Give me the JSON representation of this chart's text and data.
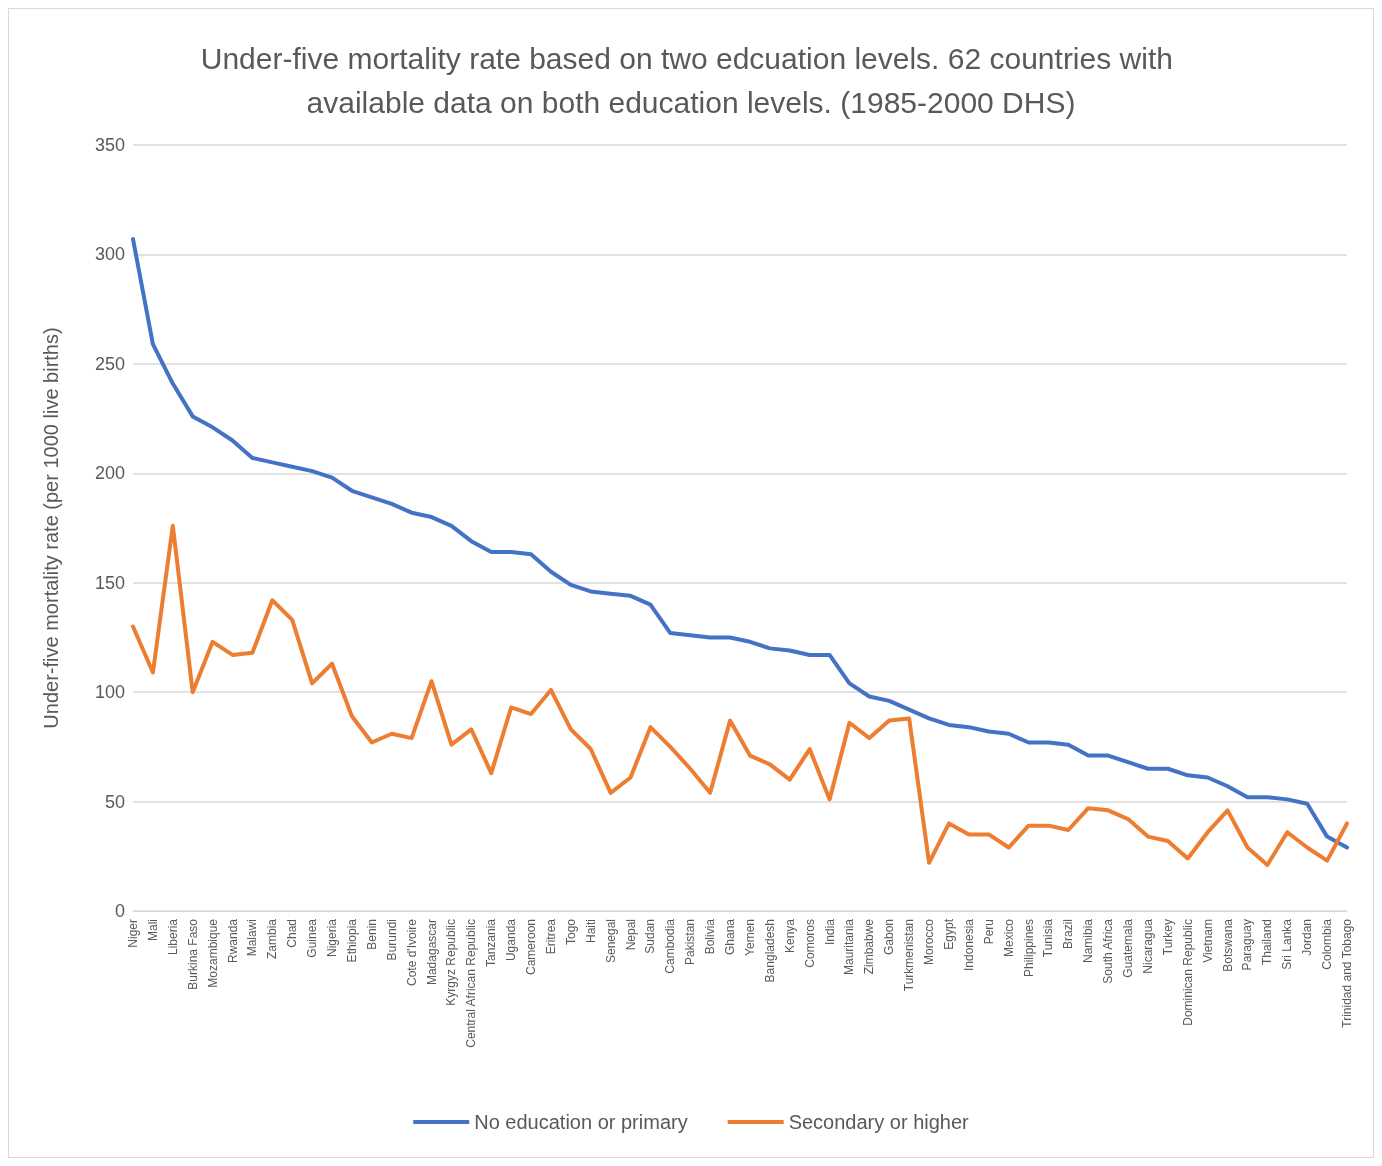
{
  "chart_data": {
    "type": "line",
    "title": "Under-five mortality rate based on two edcuation levels. 62 countries with available data on both education levels. (1985-2000 DHS)",
    "ylabel": "Under-five mortality rate (per 1000 live births)",
    "categories": [
      "Niger",
      "Mali",
      "Liberia",
      "Burkina Faso",
      "Mozambique",
      "Rwanda",
      "Malawi",
      "Zambia",
      "Chad",
      "Guinea",
      "Nigeria",
      "Ethiopia",
      "Benin",
      "Burundi",
      "Cote d'Ivoire",
      "Madagascar",
      "Kyrgyz Republic",
      "Central African Republic",
      "Tanzania",
      "Uganda",
      "Cameroon",
      "Eritrea",
      "Togo",
      "Haiti",
      "Senegal",
      "Nepal",
      "Sudan",
      "Cambodia",
      "Pakistan",
      "Bolivia",
      "Ghana",
      "Yemen",
      "Bangladesh",
      "Kenya",
      "Comoros",
      "India",
      "Mauritania",
      "Zimbabwe",
      "Gabon",
      "Turkmenistan",
      "Morocco",
      "Egypt",
      "Indonesia",
      "Peru",
      "Mexico",
      "Philippines",
      "Tunisia",
      "Brazil",
      "Namibia",
      "South Africa",
      "Guatemala",
      "Nicaragua",
      "Turkey",
      "Dominican Republic",
      "Vietnam",
      "Botswana",
      "Paraguay",
      "Thailand",
      "Sri Lanka",
      "Jordan",
      "Colombia",
      "Trinidad and Tobago"
    ],
    "series": [
      {
        "name": "No education or primary",
        "color": "#4472c4",
        "values": [
          307,
          259,
          241,
          226,
          221,
          215,
          207,
          205,
          203,
          201,
          198,
          192,
          189,
          186,
          182,
          180,
          176,
          169,
          164,
          164,
          163,
          155,
          149,
          146,
          145,
          144,
          140,
          127,
          126,
          125,
          125,
          123,
          120,
          119,
          117,
          117,
          104,
          98,
          96,
          92,
          88,
          85,
          84,
          82,
          81,
          77,
          77,
          76,
          71,
          71,
          68,
          65,
          65,
          62,
          61,
          57,
          52,
          52,
          51,
          49,
          34,
          29
        ]
      },
      {
        "name": "Secondary or higher",
        "color": "#ed7d31",
        "values": [
          130,
          109,
          176,
          100,
          123,
          117,
          118,
          142,
          133,
          104,
          113,
          89,
          77,
          81,
          79,
          105,
          76,
          83,
          63,
          93,
          90,
          101,
          83,
          74,
          54,
          61,
          84,
          75,
          65,
          54,
          87,
          71,
          67,
          60,
          74,
          51,
          86,
          79,
          87,
          88,
          22,
          40,
          35,
          35,
          29,
          39,
          39,
          37,
          47,
          46,
          42,
          34,
          32,
          24,
          36,
          46,
          29,
          21,
          36,
          29,
          23,
          40
        ]
      }
    ],
    "ylim": [
      0,
      350
    ],
    "yticks": [
      0,
      50,
      100,
      150,
      200,
      250,
      300,
      350
    ],
    "grid": "y",
    "legend": "bottom",
    "marker": "none",
    "line_style": "solid"
  }
}
